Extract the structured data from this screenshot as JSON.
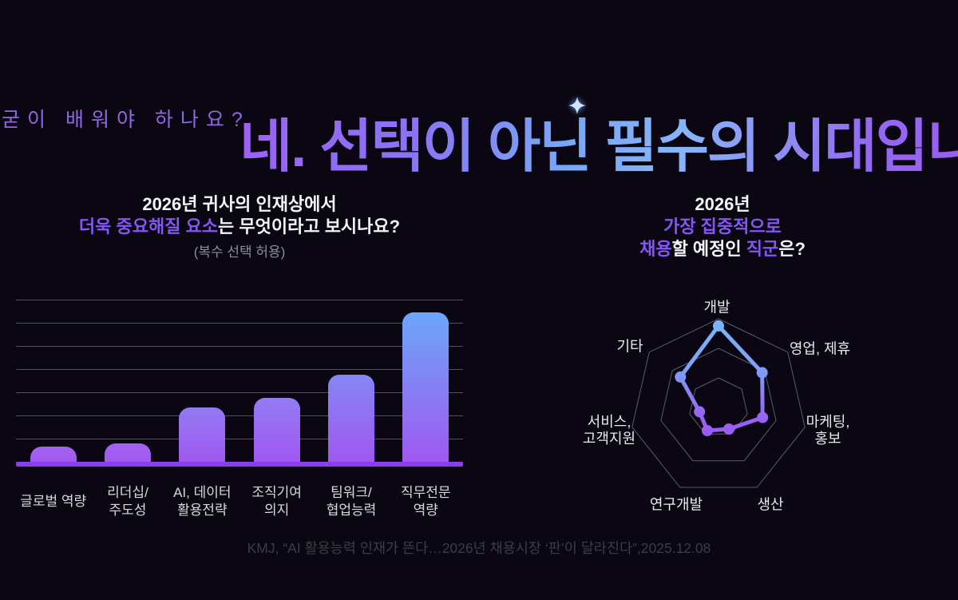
{
  "page": {
    "background": "#0a0612",
    "eyebrow": "굳이 배워야 하나요?",
    "headline": "네. 선택이 아닌 필수의 시대입니다!",
    "footer_citation": "KMJ, “AI 활용능력 인재가 뜬다…2026년 채용시장 ‘판’이 달라진다”,2025.12.08"
  },
  "colors": {
    "accent_purple": "#8457f4",
    "accent_blue": "#6ca7f9",
    "gridline": "#50505a",
    "baseline": "#8a3ef0",
    "radar_web": "#5c5c66",
    "headline_gradient": [
      "#9d60f5",
      "#78a6f7",
      "#86b5f8",
      "#a551f1"
    ]
  },
  "bar_section": {
    "title_line1": "2026년 귀사의 인재상에서",
    "title_line2_highlight": "더욱 중요해질 요소",
    "title_line2_rest": "는 무엇이라고 보시나요?",
    "subtitle": "(복수 선택 허용)"
  },
  "radar_section": {
    "title_line1": "2026년",
    "title_line2": "가장 집중적으로",
    "title_line3_hl1": "채용",
    "title_line3_mid": "할 예정인 ",
    "title_line3_hl2": "직군",
    "title_line3_end": "은?"
  },
  "chart_data": [
    {
      "type": "bar",
      "title": "2026년 귀사의 인재상에서 더욱 중요해질 요소는 무엇이라고 보시나요?",
      "subtitle": "(복수 선택 허용)",
      "categories": [
        "글로벌 역량",
        "리더십/주도성",
        "AI, 데이터 활용전략",
        "조직기여 의지",
        "팀워크/협업능력",
        "직무전문 역량"
      ],
      "categories_display": [
        [
          "글로벌 역량"
        ],
        [
          "리더십/",
          "주도성"
        ],
        [
          "AI, 데이터",
          "활용전략"
        ],
        [
          "조직기여",
          "의지"
        ],
        [
          "팀워크/",
          "협업능력"
        ],
        [
          "직무전문",
          "역량"
        ]
      ],
      "values_relative": [
        11,
        13,
        35,
        41,
        55,
        93
      ],
      "value_note": "no numeric labels shown in source; values estimated from bar heights where top gridline = 100",
      "ylim": [
        0,
        100
      ],
      "gridline_count": 7,
      "bar_top_colors": [
        "#a263f1",
        "#a263f1",
        "#937af3",
        "#937cf4",
        "#8685f5",
        "#6ca7f9"
      ],
      "bar_bottom_color": "#a156f0",
      "legend": "none",
      "grid": "horizontal lines only"
    },
    {
      "type": "radar",
      "title": "2026년 가장 집중적으로 채용할 예정인 직군은?",
      "axes": [
        "개발",
        "영업, 제휴",
        "마케팅, 홍보",
        "생산",
        "연구개발",
        "서비스, 고객지원",
        "기타"
      ],
      "labels_display": [
        [
          "개발"
        ],
        [
          "영업, 제휴"
        ],
        [
          "마케팅,",
          "홍보"
        ],
        [
          "생산"
        ],
        [
          "연구개발"
        ],
        [
          "서비스,",
          "고객지원"
        ],
        [
          "기타"
        ]
      ],
      "values_relative": [
        92,
        63,
        51,
        27,
        29,
        22,
        55
      ],
      "value_note": "no numeric labels shown in source; values estimated as fraction of outer ring x 100",
      "rings": 3,
      "stroke_gradient_top": "#7ab4fa",
      "stroke_gradient_bottom": "#9e55f1",
      "legend": "none"
    }
  ]
}
